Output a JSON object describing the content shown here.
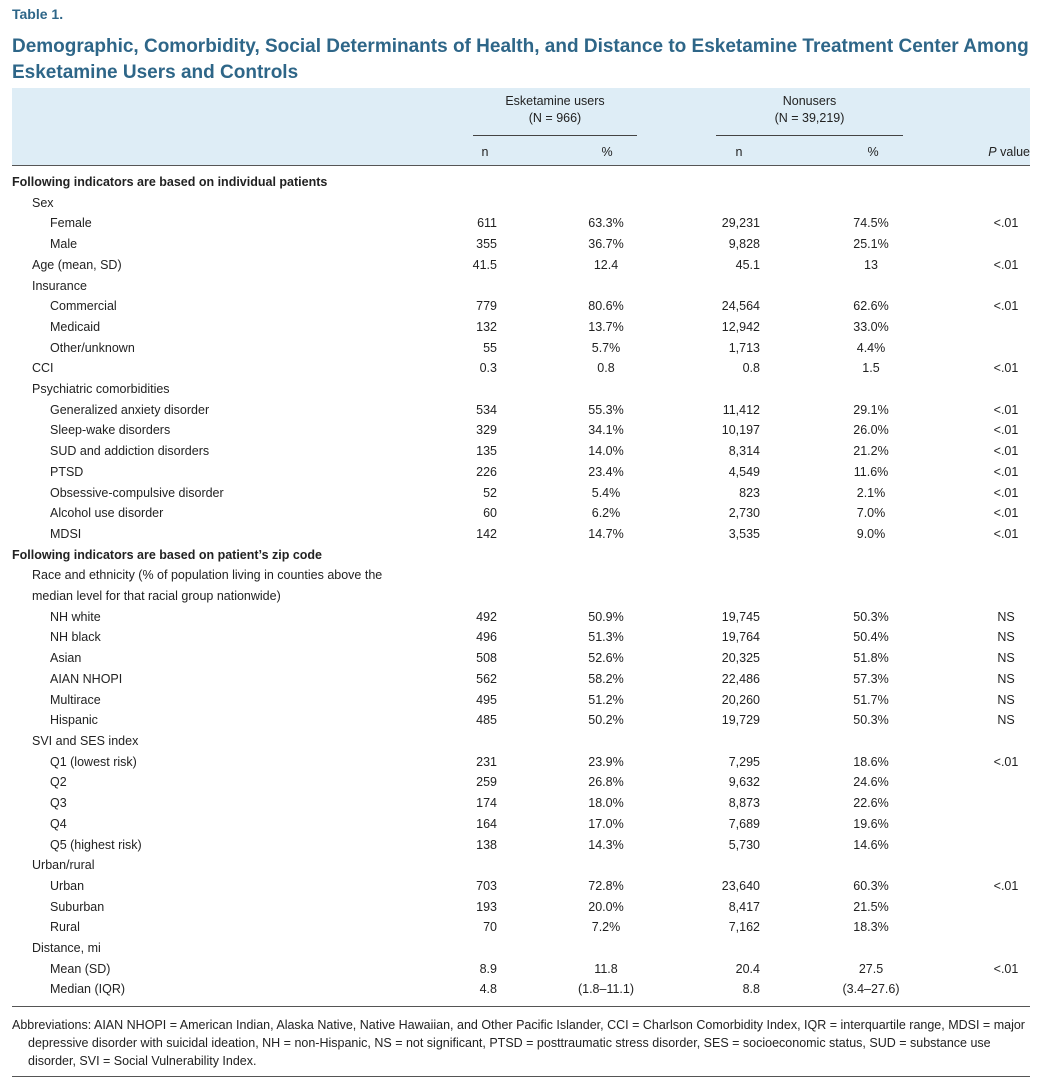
{
  "label": "Table 1.",
  "title": "Demographic, Comorbidity, Social Determinants of Health, and Distance to Esketamine Treatment Center Among Esketamine Users and Controls",
  "header": {
    "groups": [
      {
        "name": "Esketamine users",
        "n": "(N = 966)"
      },
      {
        "name": "Nonusers",
        "n": "(N = 39,219)"
      }
    ],
    "columns": [
      "n",
      "%",
      "n",
      "%",
      "P value"
    ]
  },
  "sections": [
    {
      "title": "Following indicators are based on individual patients",
      "groups": [
        {
          "label": "Sex",
          "items": [
            {
              "label": "Female",
              "values": [
                "611",
                "63.3%",
                "29,231",
                "74.5%",
                "<.01"
              ]
            },
            {
              "label": "Male",
              "values": [
                "355",
                "36.7%",
                "9,828",
                "25.1%"
              ]
            }
          ]
        },
        {
          "label": "Age (mean, SD)",
          "values": [
            "41.5",
            "12.4",
            "45.1",
            "13",
            "<.01"
          ]
        },
        {
          "label": "Insurance",
          "items": [
            {
              "label": "Commercial",
              "values": [
                "779",
                "80.6%",
                "24,564",
                "62.6%",
                "<.01"
              ]
            },
            {
              "label": "Medicaid",
              "values": [
                "132",
                "13.7%",
                "12,942",
                "33.0%"
              ]
            },
            {
              "label": "Other/unknown",
              "values": [
                "55",
                "5.7%",
                "1,713",
                "4.4%"
              ]
            }
          ]
        },
        {
          "label": "CCI",
          "values": [
            "0.3",
            "0.8",
            "0.8",
            "1.5",
            "<.01"
          ]
        },
        {
          "label": "Psychiatric comorbidities",
          "items": [
            {
              "label": "Generalized anxiety disorder",
              "values": [
                "534",
                "55.3%",
                "11,412",
                "29.1%",
                "<.01"
              ]
            },
            {
              "label": "Sleep-wake disorders",
              "values": [
                "329",
                "34.1%",
                "10,197",
                "26.0%",
                "<.01"
              ]
            },
            {
              "label": "SUD and addiction disorders",
              "values": [
                "135",
                "14.0%",
                "8,314",
                "21.2%",
                "<.01"
              ]
            },
            {
              "label": "PTSD",
              "values": [
                "226",
                "23.4%",
                "4,549",
                "11.6%",
                "<.01"
              ]
            },
            {
              "label": "Obsessive-compulsive disorder",
              "values": [
                "52",
                "5.4%",
                "823",
                "2.1%",
                "<.01"
              ]
            },
            {
              "label": "Alcohol use disorder",
              "values": [
                "60",
                "6.2%",
                "2,730",
                "7.0%",
                "<.01"
              ]
            },
            {
              "label": "MDSI",
              "values": [
                "142",
                "14.7%",
                "3,535",
                "9.0%",
                "<.01"
              ]
            }
          ]
        }
      ]
    },
    {
      "title": "Following indicators are based on patient’s zip code",
      "groups": [
        {
          "label": "Race and ethnicity (% of population living in counties above the median level for that racial group nationwide)",
          "items": [
            {
              "label": "NH white",
              "values": [
                "492",
                "50.9%",
                "19,745",
                "50.3%",
                "NS"
              ]
            },
            {
              "label": "NH black",
              "values": [
                "496",
                "51.3%",
                "19,764",
                "50.4%",
                "NS"
              ]
            },
            {
              "label": "Asian",
              "values": [
                "508",
                "52.6%",
                "20,325",
                "51.8%",
                "NS"
              ]
            },
            {
              "label": "AIAN NHOPI",
              "values": [
                "562",
                "58.2%",
                "22,486",
                "57.3%",
                "NS"
              ]
            },
            {
              "label": "Multirace",
              "values": [
                "495",
                "51.2%",
                "20,260",
                "51.7%",
                "NS"
              ]
            },
            {
              "label": "Hispanic",
              "values": [
                "485",
                "50.2%",
                "19,729",
                "50.3%",
                "NS"
              ]
            }
          ]
        },
        {
          "label": "SVI and SES index",
          "items": [
            {
              "label": "Q1 (lowest risk)",
              "values": [
                "231",
                "23.9%",
                "7,295",
                "18.6%",
                "<.01"
              ]
            },
            {
              "label": "Q2",
              "values": [
                "259",
                "26.8%",
                "9,632",
                "24.6%"
              ]
            },
            {
              "label": "Q3",
              "values": [
                "174",
                "18.0%",
                "8,873",
                "22.6%"
              ]
            },
            {
              "label": "Q4",
              "values": [
                "164",
                "17.0%",
                "7,689",
                "19.6%"
              ]
            },
            {
              "label": "Q5 (highest risk)",
              "values": [
                "138",
                "14.3%",
                "5,730",
                "14.6%"
              ]
            }
          ]
        },
        {
          "label": "Urban/rural",
          "items": [
            {
              "label": "Urban",
              "values": [
                "703",
                "72.8%",
                "23,640",
                "60.3%",
                "<.01"
              ]
            },
            {
              "label": "Suburban",
              "values": [
                "193",
                "20.0%",
                "8,417",
                "21.5%"
              ]
            },
            {
              "label": "Rural",
              "values": [
                "70",
                "7.2%",
                "7,162",
                "18.3%"
              ]
            }
          ]
        },
        {
          "label": "Distance, mi",
          "items": [
            {
              "label": "Mean (SD)",
              "values": [
                "8.9",
                "11.8",
                "20.4",
                "27.5",
                "<.01"
              ]
            },
            {
              "label": "Median (IQR)",
              "values": [
                "4.8",
                "(1.8–11.1)",
                "8.8",
                "(3.4–27.6)"
              ]
            }
          ]
        }
      ]
    }
  ],
  "footnote": "Abbreviations: AIAN NHOPI = American Indian, Alaska Native, Native Hawaiian, and Other Pacific Islander, CCI = Charlson Comorbidity Index, IQR = interquartile range, MDSI = major depressive disorder with suicidal ideation, NH = non-Hispanic, NS = not significant, PTSD = posttraumatic stress disorder, SES = socioeconomic status, SUD = substance use disorder, SVI = Social Vulnerability Index."
}
